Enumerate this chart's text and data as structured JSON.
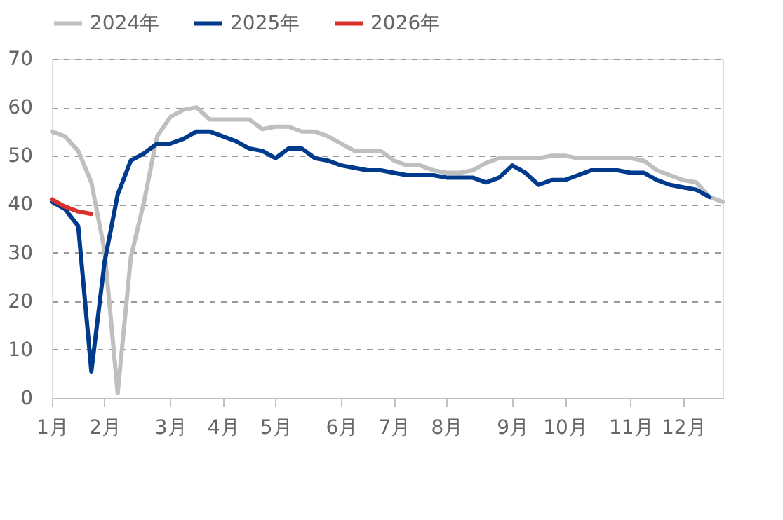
{
  "chart_data": {
    "type": "line",
    "categories": [
      "1月",
      null,
      null,
      null,
      "2月",
      null,
      null,
      null,
      null,
      "3月",
      null,
      null,
      null,
      "4月",
      null,
      null,
      null,
      "5月",
      null,
      null,
      null,
      null,
      "6月",
      null,
      null,
      null,
      "7月",
      null,
      null,
      null,
      "8月",
      null,
      null,
      null,
      null,
      "9月",
      null,
      null,
      null,
      "10月",
      null,
      null,
      null,
      null,
      "11月",
      null,
      null,
      null,
      "12月",
      null,
      null,
      null
    ],
    "series": [
      {
        "name": "2024年",
        "color": "#bfbfbf",
        "values": [
          55,
          54,
          51,
          44.5,
          30.5,
          1,
          29,
          40.5,
          54,
          58,
          59.5,
          60,
          57.5,
          57.5,
          57.5,
          57.5,
          55.5,
          56,
          56,
          55,
          55,
          54,
          52.5,
          51,
          51,
          51,
          49,
          48,
          48,
          47,
          46.5,
          46.5,
          47,
          48.5,
          49.5,
          49.5,
          49.5,
          49.5,
          50,
          50,
          49.5,
          49.5,
          49.5,
          49.5,
          49.5,
          49,
          47,
          46,
          45,
          44.5,
          41.5,
          40.5
        ]
      },
      {
        "name": "2025年",
        "color": "#003a8c",
        "values": [
          40.5,
          39,
          35.5,
          5.5,
          28,
          42,
          49,
          50.5,
          52.5,
          52.5,
          53.5,
          55,
          55,
          54,
          53,
          51.5,
          51,
          49.5,
          51.5,
          51.5,
          49.5,
          49,
          48,
          47.5,
          47,
          47,
          46.5,
          46,
          46,
          46,
          45.5,
          45.5,
          45.5,
          44.5,
          45.5,
          48,
          46.5,
          44,
          45,
          45,
          46,
          47,
          47,
          47,
          46.5,
          46.5,
          45,
          44,
          43.5,
          43,
          41.5,
          null
        ]
      },
      {
        "name": "2026年",
        "color": "#d9312b",
        "values": [
          41,
          39.5,
          38.5,
          38,
          null,
          null,
          null,
          null,
          null,
          null,
          null,
          null,
          null,
          null,
          null,
          null,
          null,
          null,
          null,
          null,
          null,
          null,
          null,
          null,
          null,
          null,
          null,
          null,
          null,
          null,
          null,
          null,
          null,
          null,
          null,
          null,
          null,
          null,
          null,
          null,
          null,
          null,
          null,
          null,
          null,
          null,
          null,
          null,
          null,
          null,
          null,
          null
        ]
      }
    ],
    "ylim": [
      0,
      70
    ],
    "yticks": [
      0,
      10,
      20,
      30,
      40,
      50,
      60,
      70
    ],
    "grid": "y",
    "legend": "top",
    "marker": "none",
    "line_style": "solid"
  }
}
